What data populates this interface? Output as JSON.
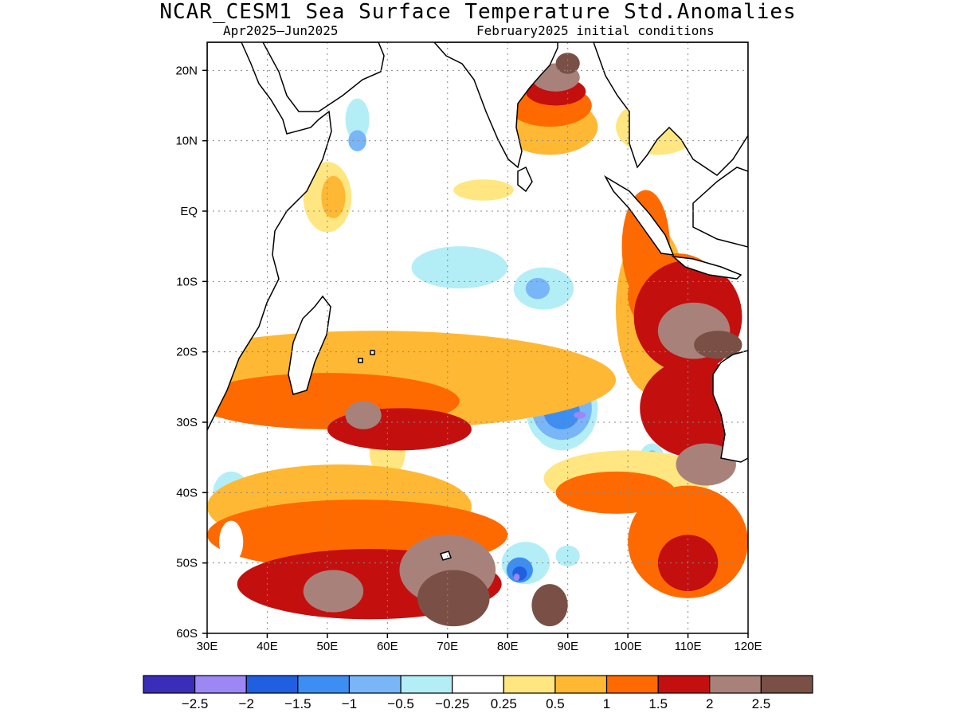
{
  "title": "NCAR_CESM1 Sea Surface Temperature Std.Anomalies",
  "subtitle_left": "Apr2025–Jun2025",
  "subtitle_right": "February2025 initial conditions",
  "map": {
    "lon_range": [
      30,
      120
    ],
    "lat_range": [
      -60,
      24
    ],
    "lat_ticks": [
      {
        "value": 20,
        "label": "20N"
      },
      {
        "value": 10,
        "label": "10N"
      },
      {
        "value": 0,
        "label": "EQ"
      },
      {
        "value": -10,
        "label": "10S"
      },
      {
        "value": -20,
        "label": "20S"
      },
      {
        "value": -30,
        "label": "30S"
      },
      {
        "value": -40,
        "label": "40S"
      },
      {
        "value": -50,
        "label": "50S"
      },
      {
        "value": -60,
        "label": "60S"
      }
    ],
    "lon_ticks": [
      {
        "value": 30,
        "label": "30E"
      },
      {
        "value": 40,
        "label": "40E"
      },
      {
        "value": 50,
        "label": "50E"
      },
      {
        "value": 60,
        "label": "60E"
      },
      {
        "value": 70,
        "label": "70E"
      },
      {
        "value": 80,
        "label": "80E"
      },
      {
        "value": 90,
        "label": "90E"
      },
      {
        "value": 100,
        "label": "100E"
      },
      {
        "value": 110,
        "label": "110E"
      },
      {
        "value": 120,
        "label": "120E"
      }
    ]
  },
  "colorbar": {
    "colors": [
      "#3a2db8",
      "#9d87f5",
      "#1f5fe0",
      "#3d8ef2",
      "#78b6f7",
      "#b3eef7",
      "#ffffff",
      "#ffe680",
      "#ffb833",
      "#ff6a00",
      "#c40f0f",
      "#a8827a",
      "#7a5046"
    ],
    "labels": [
      "−2.5",
      "−2",
      "−1.5",
      "−1",
      "−0.5",
      "−0.25",
      "0.25",
      "0.5",
      "1",
      "1.5",
      "2",
      "2.5"
    ]
  },
  "anomaly_features": [
    {
      "category": 6,
      "lon": 68,
      "lat": -2,
      "rx": 22,
      "ry": 18
    },
    {
      "category": 5,
      "lon": 72,
      "lat": -8,
      "rx": 8,
      "ry": 3
    },
    {
      "category": 5,
      "lon": 55,
      "lat": 13,
      "rx": 2,
      "ry": 3
    },
    {
      "category": 4,
      "lon": 55,
      "lat": 10,
      "rx": 1.5,
      "ry": 1.5
    },
    {
      "category": 5,
      "lon": 86,
      "lat": -11,
      "rx": 5,
      "ry": 3
    },
    {
      "category": 4,
      "lon": 85,
      "lat": -11,
      "rx": 2,
      "ry": 1.5
    },
    {
      "category": 5,
      "lon": 89,
      "lat": -28,
      "rx": 6,
      "ry": 6
    },
    {
      "category": 4,
      "lon": 89,
      "lat": -28,
      "rx": 5,
      "ry": 4.5
    },
    {
      "category": 3,
      "lon": 89,
      "lat": -28.5,
      "rx": 3,
      "ry": 2.5
    },
    {
      "category": 1,
      "lon": 92,
      "lat": -29,
      "rx": 1,
      "ry": 0.5
    },
    {
      "category": 5,
      "lon": 104,
      "lat": -35,
      "rx": 2,
      "ry": 2
    },
    {
      "category": 4,
      "lon": 104,
      "lat": -35,
      "rx": 1,
      "ry": 1
    },
    {
      "category": 5,
      "lon": 34,
      "lat": -40,
      "rx": 3,
      "ry": 3
    },
    {
      "category": 4,
      "lon": 35,
      "lat": -39.5,
      "rx": 1.2,
      "ry": 1
    },
    {
      "category": 5,
      "lon": 83,
      "lat": -50,
      "rx": 4,
      "ry": 3
    },
    {
      "category": 3,
      "lon": 82,
      "lat": -51,
      "rx": 2.2,
      "ry": 1.8
    },
    {
      "category": 2,
      "lon": 82,
      "lat": -51.5,
      "rx": 1.2,
      "ry": 1
    },
    {
      "category": 1,
      "lon": 81.5,
      "lat": -52,
      "rx": 0.5,
      "ry": 0.5
    },
    {
      "category": 5,
      "lon": 90,
      "lat": -49,
      "rx": 2,
      "ry": 1.5
    },
    {
      "category": 7,
      "lon": 105,
      "lat": 12,
      "rx": 7,
      "ry": 4
    },
    {
      "category": 8,
      "lon": 87,
      "lat": 12,
      "rx": 8,
      "ry": 4
    },
    {
      "category": 9,
      "lon": 87,
      "lat": 15,
      "rx": 7,
      "ry": 3
    },
    {
      "category": 10,
      "lon": 88,
      "lat": 17,
      "rx": 5,
      "ry": 2
    },
    {
      "category": 11,
      "lon": 88,
      "lat": 19,
      "rx": 4,
      "ry": 2
    },
    {
      "category": 12,
      "lon": 90,
      "lat": 21,
      "rx": 2,
      "ry": 1.5
    },
    {
      "category": 7,
      "lon": 76,
      "lat": 3,
      "rx": 5,
      "ry": 1.5
    },
    {
      "category": 7,
      "lon": 50,
      "lat": 2,
      "rx": 4,
      "ry": 5
    },
    {
      "category": 8,
      "lon": 51,
      "lat": 2,
      "rx": 2,
      "ry": 3
    },
    {
      "category": 7,
      "lon": 60,
      "lat": -34,
      "rx": 3,
      "ry": 4
    },
    {
      "category": 7,
      "lon": 100,
      "lat": -38,
      "rx": 14,
      "ry": 4
    },
    {
      "category": 8,
      "lon": 58,
      "lat": -24,
      "rx": 40,
      "ry": 7
    },
    {
      "category": 8,
      "lon": 52,
      "lat": -42,
      "rx": 22,
      "ry": 6
    },
    {
      "category": 8,
      "lon": 104,
      "lat": -14,
      "rx": 6,
      "ry": 12
    },
    {
      "category": 9,
      "lon": 103,
      "lat": -5,
      "rx": 4,
      "ry": 8
    },
    {
      "category": 9,
      "lon": 108,
      "lat": -12,
      "rx": 8,
      "ry": 6
    },
    {
      "category": 9,
      "lon": 50,
      "lat": -27,
      "rx": 22,
      "ry": 4
    },
    {
      "category": 9,
      "lon": 98,
      "lat": -40,
      "rx": 10,
      "ry": 3
    },
    {
      "category": 9,
      "lon": 55,
      "lat": -46,
      "rx": 25,
      "ry": 5
    },
    {
      "category": 9,
      "lon": 110,
      "lat": -47,
      "rx": 10,
      "ry": 8
    },
    {
      "category": 10,
      "lon": 110,
      "lat": -15,
      "rx": 9,
      "ry": 8
    },
    {
      "category": 10,
      "lon": 111,
      "lat": -28,
      "rx": 9,
      "ry": 7
    },
    {
      "category": 10,
      "lon": 62,
      "lat": -31,
      "rx": 12,
      "ry": 3
    },
    {
      "category": 10,
      "lon": 57,
      "lat": -53,
      "rx": 22,
      "ry": 5
    },
    {
      "category": 10,
      "lon": 110,
      "lat": -50,
      "rx": 5,
      "ry": 4
    },
    {
      "category": 11,
      "lon": 111,
      "lat": -17,
      "rx": 6,
      "ry": 4
    },
    {
      "category": 11,
      "lon": 113,
      "lat": -36,
      "rx": 5,
      "ry": 3
    },
    {
      "category": 11,
      "lon": 56,
      "lat": -29,
      "rx": 3,
      "ry": 2
    },
    {
      "category": 11,
      "lon": 51,
      "lat": -54,
      "rx": 5,
      "ry": 3
    },
    {
      "category": 11,
      "lon": 70,
      "lat": -51,
      "rx": 8,
      "ry": 5
    },
    {
      "category": 12,
      "lon": 115,
      "lat": -19,
      "rx": 4,
      "ry": 2
    },
    {
      "category": 12,
      "lon": 71,
      "lat": -55,
      "rx": 6,
      "ry": 4
    },
    {
      "category": 12,
      "lon": 87,
      "lat": -56,
      "rx": 3,
      "ry": 3
    },
    {
      "category": 6,
      "lon": 34,
      "lat": -47,
      "rx": 2,
      "ry": 3
    },
    {
      "category": 6,
      "lon": 80,
      "lat": -34,
      "rx": 6,
      "ry": 3
    }
  ]
}
